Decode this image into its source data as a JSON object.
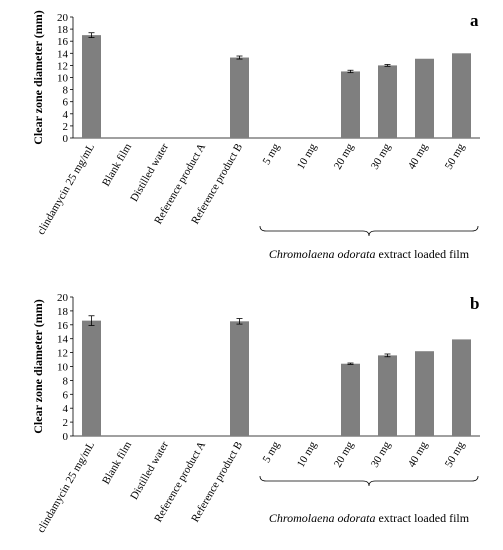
{
  "chart_data": [
    {
      "type": "bar",
      "panel_label": "a",
      "ylabel": "Clear zone diameter (mm)",
      "ylim": [
        0,
        20
      ],
      "yticks": [
        0,
        2,
        4,
        6,
        8,
        10,
        12,
        14,
        16,
        18,
        20
      ],
      "categories": [
        "clindamycin 25 mg/mL",
        "Blank film",
        "Distilled water",
        "Reference product A",
        "Reference product B",
        "5 mg",
        "10 mg",
        "20 mg",
        "30 mg",
        "40 mg",
        "50 mg"
      ],
      "values": [
        17.0,
        0,
        0,
        0,
        13.3,
        0,
        0,
        11.0,
        12.0,
        13.1,
        14.0
      ],
      "errors": [
        0.4,
        0,
        0,
        0,
        0.25,
        0,
        0,
        0.2,
        0.15,
        0,
        0
      ],
      "group_label_italic": "Chromolaena odorata",
      "group_label_rest": " extract loaded film",
      "bar_color": "#7f7f7f"
    },
    {
      "type": "bar",
      "panel_label": "b",
      "ylabel": "Clear zone diameter (mm)",
      "ylim": [
        0,
        20
      ],
      "yticks": [
        0,
        2,
        4,
        6,
        8,
        10,
        12,
        14,
        16,
        18,
        20
      ],
      "categories": [
        "clindamycin 25 mg/mL",
        "Blank film",
        "Distilled water",
        "Reference product A",
        "Reference product B",
        "5 mg",
        "10 mg",
        "20 mg",
        "30 mg",
        "40 mg",
        "50 mg"
      ],
      "values": [
        16.6,
        0,
        0,
        0,
        16.5,
        0,
        0,
        10.4,
        11.6,
        12.2,
        13.9
      ],
      "errors": [
        0.7,
        0,
        0,
        0,
        0.4,
        0,
        0,
        0.1,
        0.2,
        0,
        0
      ],
      "group_label_italic": "Chromolaena odorata",
      "group_label_rest": " extract loaded film",
      "bar_color": "#7f7f7f"
    }
  ]
}
